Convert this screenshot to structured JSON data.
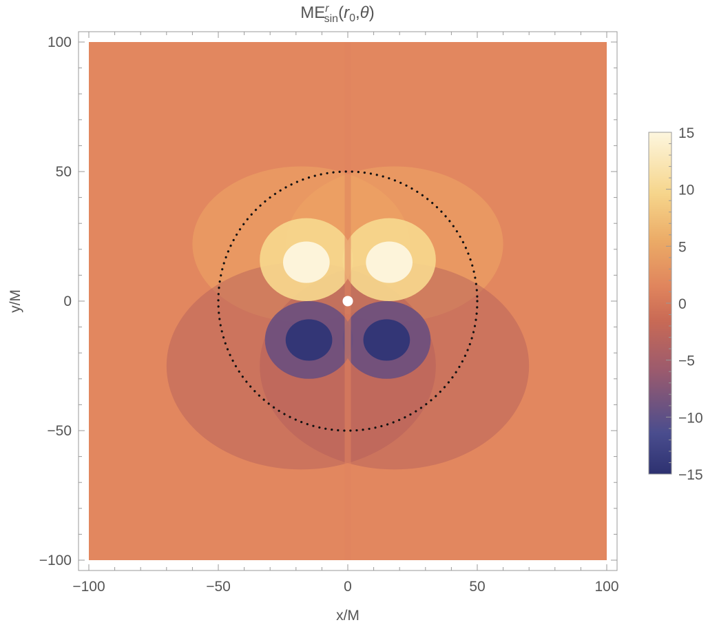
{
  "chart_data": {
    "type": "heatmap",
    "title": {
      "base": "ME",
      "superscript": "r",
      "subscript": "sin",
      "args_open": "(",
      "arg1": "r",
      "arg1_subscript": "0",
      "separator": ",",
      "arg2": "θ",
      "args_close": ")"
    },
    "xlabel": "x/M",
    "ylabel": "y/M",
    "xlim": [
      -100,
      100
    ],
    "ylim": [
      -100,
      100
    ],
    "x_ticks": [
      -100,
      -50,
      0,
      50,
      100
    ],
    "y_ticks": [
      -100,
      -50,
      0,
      50,
      100
    ],
    "x_tick_labels": [
      "−100",
      "−50",
      "0",
      "50",
      "100"
    ],
    "y_tick_labels": [
      "−100",
      "−50",
      "0",
      "50",
      "100"
    ],
    "colorbar": {
      "range": [
        -15,
        15
      ],
      "ticks": [
        -15,
        -10,
        -5,
        0,
        5,
        10,
        15
      ],
      "tick_labels": [
        "−15",
        "−10",
        "−5",
        "0",
        "5",
        "10",
        "15"
      ],
      "colors": [
        "#2d3170",
        "#4a4d8e",
        "#9a5a6e",
        "#c96a55",
        "#e0855d",
        "#ebaa66",
        "#f6d58b",
        "#fdf6de"
      ]
    },
    "features": {
      "dotted_circle_radius": 50,
      "central_marker_radius": 2,
      "extrema": [
        {
          "x": -15,
          "y": 15,
          "value": 15
        },
        {
          "x": 15,
          "y": 15,
          "value": 15
        },
        {
          "x": -15,
          "y": -15,
          "value": -15
        },
        {
          "x": 15,
          "y": -15,
          "value": -15
        }
      ]
    },
    "grid": false,
    "legend": "colorbar-right"
  }
}
